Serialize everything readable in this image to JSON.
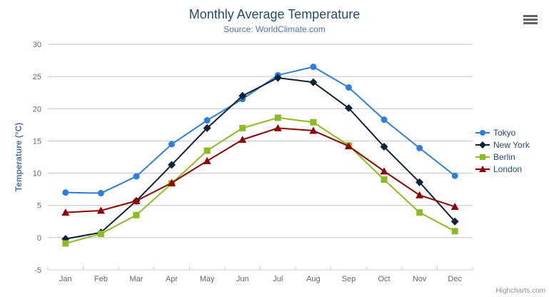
{
  "credit": {
    "label": "Highcharts.com"
  },
  "context_button": {
    "icon": "hamburger-menu-icon"
  },
  "colors": {
    "background": "#ffffff",
    "title": "#274b6d",
    "subtitle": "#4d759e",
    "axis_title": "#4d759e",
    "tick_label": "#666666",
    "grid": "#c0c0c0",
    "axis_line": "#c0d0e0",
    "legend_text": "#274b6d",
    "credit": "#909090",
    "menu_icon": "#666666"
  },
  "chart_data": {
    "type": "line",
    "title": "Monthly Average Temperature",
    "subtitle": "Source: WorldClimate.com",
    "xlabel": "",
    "ylabel": "Temperature (°C)",
    "categories": [
      "Jan",
      "Feb",
      "Mar",
      "Apr",
      "May",
      "Jun",
      "Jul",
      "Aug",
      "Sep",
      "Oct",
      "Nov",
      "Dec"
    ],
    "series": [
      {
        "name": "Tokyo",
        "color": "#2f7ed8",
        "marker": "circle",
        "values": [
          7.0,
          6.9,
          9.5,
          14.5,
          18.2,
          21.5,
          25.2,
          26.5,
          23.3,
          18.3,
          13.9,
          9.6
        ]
      },
      {
        "name": "New York",
        "color": "#0d233a",
        "marker": "diamond",
        "values": [
          -0.2,
          0.8,
          5.7,
          11.3,
          17.0,
          22.0,
          24.8,
          24.1,
          20.1,
          14.1,
          8.6,
          2.5
        ]
      },
      {
        "name": "Berlin",
        "color": "#8bbc21",
        "marker": "square",
        "values": [
          -0.9,
          0.6,
          3.5,
          8.4,
          13.5,
          17.0,
          18.6,
          17.9,
          14.3,
          9.0,
          3.9,
          1.0
        ]
      },
      {
        "name": "London",
        "color": "#910000",
        "marker": "triangle",
        "values": [
          3.9,
          4.2,
          5.7,
          8.5,
          11.9,
          15.2,
          17.0,
          16.6,
          14.2,
          10.3,
          6.6,
          4.8
        ]
      }
    ],
    "ylim": [
      -5,
      30
    ],
    "y_tick_interval": 5,
    "grid": true,
    "legend_position": "right"
  }
}
